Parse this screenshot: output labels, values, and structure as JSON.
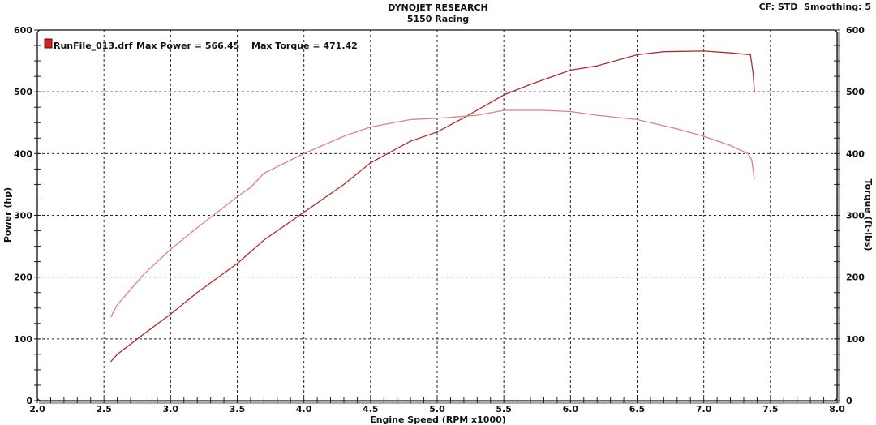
{
  "header": {
    "title": "DYNOJET RESEARCH",
    "subtitle": "5150 Racing",
    "settings": "CF: STD  Smoothing: 5"
  },
  "chart_data": {
    "type": "line",
    "legend": {
      "file": "RunFile_013.drf",
      "max_power_text": "Max Power = 566.45",
      "max_torque_text": "Max Torque = 471.42",
      "placement": "top-left",
      "swatch_color": "#d42020"
    },
    "xlabel": "Engine Speed (RPM x1000)",
    "ylabel": "Power (hp)",
    "y2label": "Torque (ft-lbs)",
    "xlim": [
      2.0,
      8.0
    ],
    "ylim": [
      0,
      600
    ],
    "y2lim": [
      0,
      600
    ],
    "xticks": [
      "2.0",
      "2.5",
      "3.0",
      "3.5",
      "4.0",
      "4.5",
      "5.0",
      "5.5",
      "6.0",
      "6.5",
      "7.0",
      "7.5",
      "8.0"
    ],
    "yticks": [
      "0",
      "100",
      "200",
      "300",
      "400",
      "500",
      "600"
    ],
    "grid": true,
    "series": [
      {
        "key": "power",
        "color": "#b22a2a",
        "x": [
          2.55,
          2.6,
          2.8,
          3.0,
          3.2,
          3.5,
          3.7,
          4.0,
          4.3,
          4.5,
          4.8,
          5.0,
          5.2,
          5.5,
          5.7,
          6.0,
          6.2,
          6.5,
          6.7,
          7.0,
          7.2,
          7.35,
          7.37,
          7.38
        ],
        "y": [
          63,
          75,
          108,
          140,
          175,
          222,
          260,
          305,
          350,
          385,
          420,
          435,
          458,
          495,
          512,
          535,
          542,
          560,
          565,
          566,
          563,
          560,
          530,
          500
        ]
      },
      {
        "key": "torque",
        "color": "#e08080",
        "x": [
          2.55,
          2.6,
          2.8,
          3.0,
          3.2,
          3.5,
          3.6,
          3.7,
          4.0,
          4.3,
          4.5,
          4.8,
          5.0,
          5.3,
          5.5,
          5.8,
          6.0,
          6.2,
          6.5,
          6.8,
          7.0,
          7.2,
          7.33,
          7.36,
          7.38
        ],
        "y": [
          135,
          155,
          205,
          245,
          280,
          330,
          345,
          368,
          400,
          428,
          443,
          455,
          457,
          462,
          470,
          470,
          468,
          462,
          455,
          440,
          428,
          413,
          400,
          390,
          358
        ]
      }
    ]
  }
}
